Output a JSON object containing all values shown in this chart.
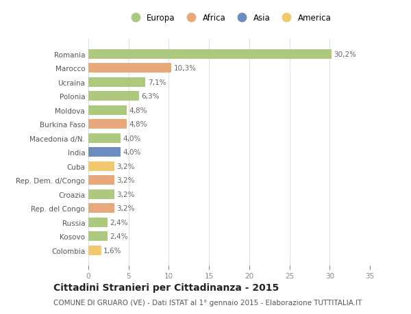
{
  "categories": [
    "Romania",
    "Marocco",
    "Ucraina",
    "Polonia",
    "Moldova",
    "Burkina Faso",
    "Macedonia d/N.",
    "India",
    "Cuba",
    "Rep. Dem. d/Congo",
    "Croazia",
    "Rep. del Congo",
    "Russia",
    "Kosovo",
    "Colombia"
  ],
  "values": [
    30.2,
    10.3,
    7.1,
    6.3,
    4.8,
    4.8,
    4.0,
    4.0,
    3.2,
    3.2,
    3.2,
    3.2,
    2.4,
    2.4,
    1.6
  ],
  "labels": [
    "30,2%",
    "10,3%",
    "7,1%",
    "6,3%",
    "4,8%",
    "4,8%",
    "4,0%",
    "4,0%",
    "3,2%",
    "3,2%",
    "3,2%",
    "3,2%",
    "2,4%",
    "2,4%",
    "1,6%"
  ],
  "continents": [
    "Europa",
    "Africa",
    "Europa",
    "Europa",
    "Europa",
    "Africa",
    "Europa",
    "Asia",
    "America",
    "Africa",
    "Europa",
    "Africa",
    "Europa",
    "Europa",
    "America"
  ],
  "continent_colors": {
    "Europa": "#adc97e",
    "Africa": "#e8a87c",
    "Asia": "#6b8cbf",
    "America": "#f2c96e"
  },
  "legend_order": [
    "Europa",
    "Africa",
    "Asia",
    "America"
  ],
  "title": "Cittadini Stranieri per Cittadinanza - 2015",
  "subtitle": "COMUNE DI GRUARO (VE) - Dati ISTAT al 1° gennaio 2015 - Elaborazione TUTTITALIA.IT",
  "xlim": [
    0,
    35
  ],
  "xticks": [
    0,
    5,
    10,
    15,
    20,
    25,
    30,
    35
  ],
  "background_color": "#ffffff",
  "grid_color": "#e0e0e0",
  "bar_height": 0.68,
  "title_fontsize": 10,
  "subtitle_fontsize": 7.5,
  "label_fontsize": 7.5,
  "tick_fontsize": 7.5,
  "legend_fontsize": 8.5
}
